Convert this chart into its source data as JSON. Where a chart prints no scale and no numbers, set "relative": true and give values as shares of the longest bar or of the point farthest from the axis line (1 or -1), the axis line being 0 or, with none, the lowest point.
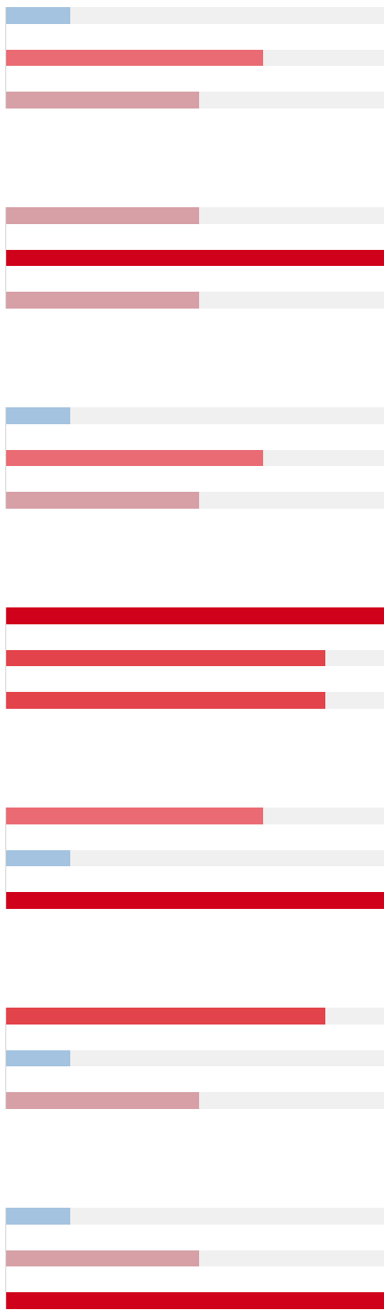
{
  "chart_data": [
    {
      "type": "bar",
      "orientation": "horizontal",
      "relative": true,
      "stacked": true,
      "categories": [
        null,
        null,
        null
      ],
      "series": [
        {
          "values": [
            0.17,
            0.68,
            0.51
          ],
          "colors": [
            "#a3c3e0",
            "#ea6b73",
            "#d6a0a6"
          ]
        },
        {
          "color": "#f0f0f0",
          "values": [
            0.83,
            0.32,
            0.49
          ]
        }
      ]
    },
    {
      "type": "bar",
      "orientation": "horizontal",
      "relative": true,
      "stacked": true,
      "categories": [
        null,
        null,
        null
      ],
      "series": [
        {
          "values": [
            0.51,
            1,
            0.51
          ],
          "colors": [
            "#d6a0a6",
            "#d0021b",
            "#d6a0a6"
          ]
        },
        {
          "color": "#f0f0f0",
          "values": [
            0.49,
            0,
            0.49
          ]
        }
      ]
    },
    {
      "type": "bar",
      "orientation": "horizontal",
      "relative": true,
      "stacked": true,
      "categories": [
        null,
        null,
        null
      ],
      "series": [
        {
          "values": [
            0.17,
            0.68,
            0.51
          ],
          "colors": [
            "#a3c3e0",
            "#ea6b73",
            "#d6a0a6"
          ]
        },
        {
          "color": "#f0f0f0",
          "values": [
            0.83,
            0.32,
            0.49
          ]
        }
      ]
    },
    {
      "type": "bar",
      "orientation": "horizontal",
      "relative": true,
      "stacked": true,
      "categories": [
        null,
        null,
        null
      ],
      "series": [
        {
          "values": [
            1,
            0.845,
            0.845
          ],
          "colors": [
            "#d0021b",
            "#e3434b",
            "#e3434b"
          ]
        },
        {
          "color": "#f0f0f0",
          "values": [
            0,
            0.155,
            0.155
          ]
        }
      ]
    },
    {
      "type": "bar",
      "orientation": "horizontal",
      "relative": true,
      "stacked": true,
      "categories": [
        null,
        null,
        null
      ],
      "series": [
        {
          "values": [
            0.68,
            0.17,
            1
          ],
          "colors": [
            "#ea6b73",
            "#a3c3e0",
            "#d0021b"
          ]
        },
        {
          "color": "#f0f0f0",
          "values": [
            0.32,
            0.83,
            0
          ]
        }
      ]
    },
    {
      "type": "bar",
      "orientation": "horizontal",
      "relative": true,
      "stacked": true,
      "categories": [
        null,
        null,
        null
      ],
      "series": [
        {
          "values": [
            0.845,
            0.17,
            0.51
          ],
          "colors": [
            "#e3434b",
            "#a3c3e0",
            "#d6a0a6"
          ]
        },
        {
          "color": "#f0f0f0",
          "values": [
            0.155,
            0.83,
            0.49
          ]
        }
      ]
    },
    {
      "type": "bar",
      "orientation": "horizontal",
      "relative": true,
      "stacked": true,
      "categories": [
        null,
        null,
        null
      ],
      "series": [
        {
          "values": [
            0.17,
            0.51,
            1
          ],
          "colors": [
            "#a3c3e0",
            "#d6a0a6",
            "#d0021b"
          ]
        },
        {
          "color": "#f0f0f0",
          "values": [
            0.83,
            0.49,
            0
          ]
        }
      ]
    }
  ]
}
